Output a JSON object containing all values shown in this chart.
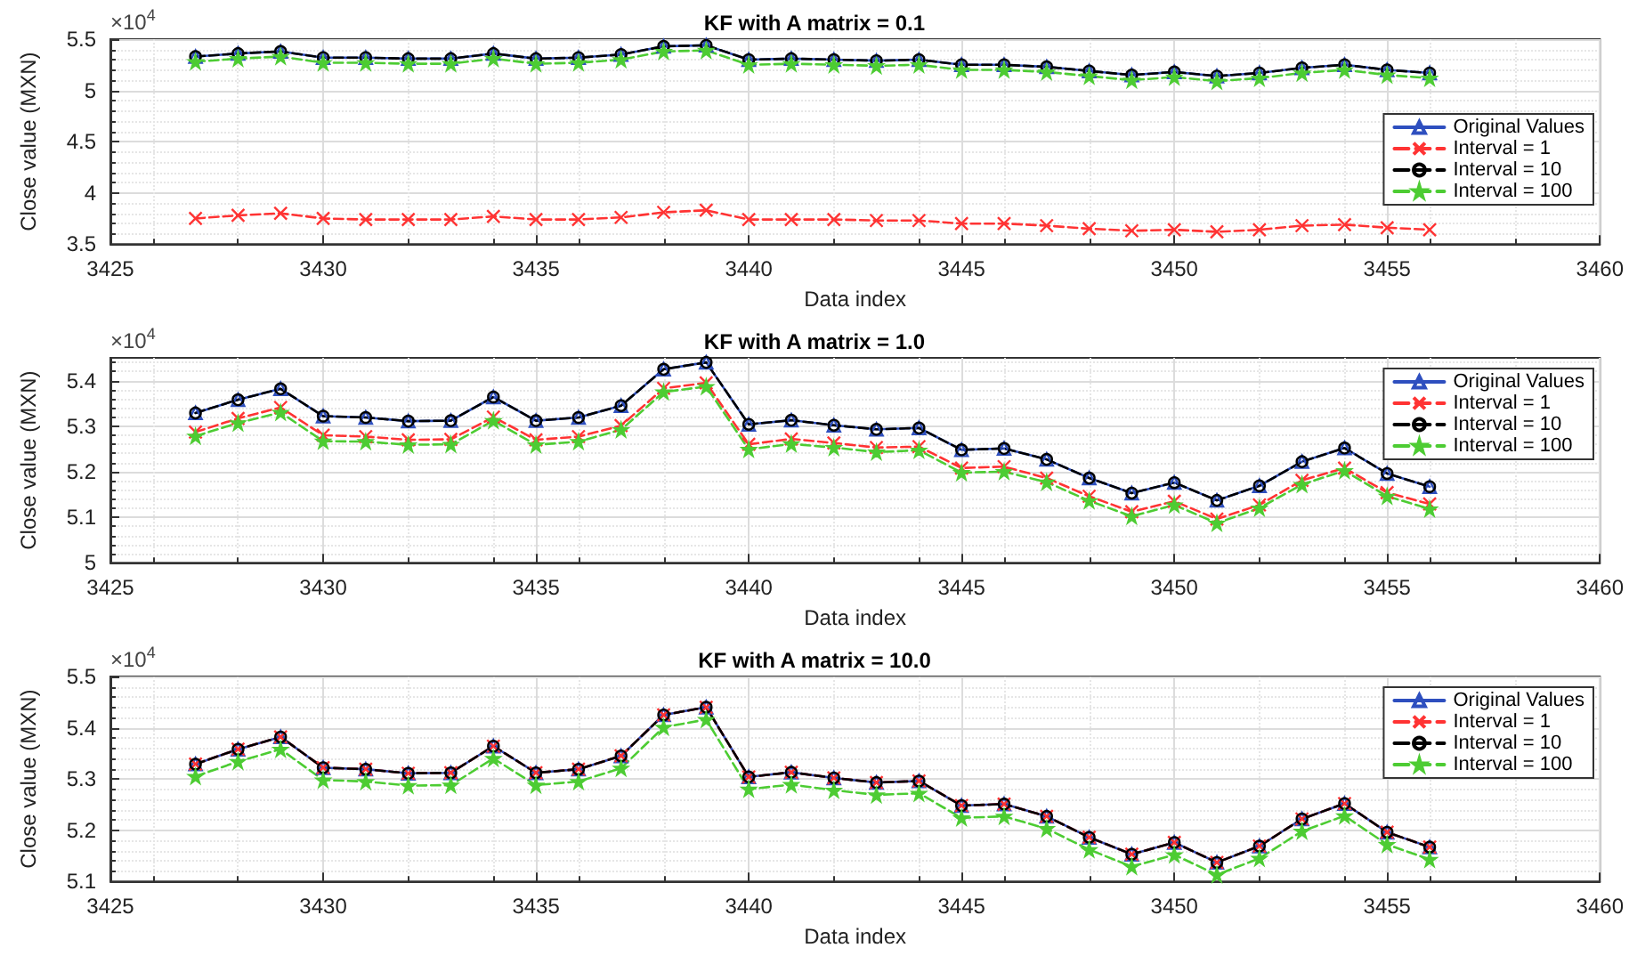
{
  "chart_data": [
    {
      "type": "line",
      "title": "KF with A matrix = 0.1",
      "xlabel": "Data index",
      "ylabel": "Close value (MXN)",
      "annotations": [
        "×10$^{4}$"
      ],
      "grid": true,
      "legend": "right",
      "x": [
        3427,
        3428,
        3429,
        3430,
        3431,
        3432,
        3433,
        3434,
        3435,
        3436,
        3437,
        3438,
        3439,
        3440,
        3441,
        3442,
        3443,
        3444,
        3445,
        3446,
        3447,
        3448,
        3449,
        3450,
        3451,
        3452,
        3453,
        3454,
        3455,
        3456
      ],
      "xlim": [
        3425,
        3460
      ],
      "xticks": [
        3425,
        3430,
        3435,
        3440,
        3445,
        3450,
        3455,
        3460
      ],
      "ylim": [
        3.5,
        5.5
      ],
      "yticks": [
        3.5,
        4,
        4.5,
        5,
        5.5
      ],
      "series": [
        {
          "name": "Original Values",
          "color": "#2e4fbf",
          "marker": "triangle",
          "line_style": "solid",
          "values": [
            5.33,
            5.36,
            5.38,
            5.32,
            5.32,
            5.31,
            5.31,
            5.36,
            5.31,
            5.32,
            5.35,
            5.43,
            5.44,
            5.3,
            5.31,
            5.3,
            5.29,
            5.3,
            5.25,
            5.25,
            5.23,
            5.19,
            5.15,
            5.18,
            5.14,
            5.17,
            5.22,
            5.25,
            5.2,
            5.17
          ]
        },
        {
          "name": "Interval = 1",
          "color": "#ff3333",
          "marker": "cross",
          "line_style": "dashed",
          "values": [
            3.75,
            3.78,
            3.8,
            3.75,
            3.74,
            3.74,
            3.74,
            3.77,
            3.74,
            3.74,
            3.76,
            3.81,
            3.83,
            3.74,
            3.74,
            3.74,
            3.73,
            3.73,
            3.7,
            3.7,
            3.68,
            3.65,
            3.63,
            3.64,
            3.62,
            3.64,
            3.68,
            3.69,
            3.66,
            3.64
          ]
        },
        {
          "name": "Interval = 10",
          "color": "#000000",
          "marker": "circle",
          "line_style": "dashed",
          "values": [
            5.33,
            5.36,
            5.38,
            5.32,
            5.32,
            5.31,
            5.31,
            5.36,
            5.31,
            5.32,
            5.35,
            5.43,
            5.44,
            5.3,
            5.31,
            5.3,
            5.29,
            5.3,
            5.25,
            5.25,
            5.23,
            5.19,
            5.15,
            5.18,
            5.14,
            5.17,
            5.22,
            5.25,
            5.2,
            5.17
          ]
        },
        {
          "name": "Interval = 100",
          "color": "#4dcc33",
          "marker": "star",
          "line_style": "dashed",
          "values": [
            5.28,
            5.31,
            5.33,
            5.27,
            5.27,
            5.26,
            5.26,
            5.31,
            5.26,
            5.27,
            5.3,
            5.38,
            5.39,
            5.25,
            5.26,
            5.25,
            5.24,
            5.25,
            5.2,
            5.2,
            5.18,
            5.14,
            5.1,
            5.13,
            5.09,
            5.12,
            5.17,
            5.2,
            5.15,
            5.12
          ]
        }
      ]
    },
    {
      "type": "line",
      "title": "KF with A matrix = 1.0",
      "xlabel": "Data index",
      "ylabel": "Close value (MXN)",
      "annotations": [
        "×10$^{4}$"
      ],
      "grid": true,
      "legend": "top right",
      "x": [
        3427,
        3428,
        3429,
        3430,
        3431,
        3432,
        3433,
        3434,
        3435,
        3436,
        3437,
        3438,
        3439,
        3440,
        3441,
        3442,
        3443,
        3444,
        3445,
        3446,
        3447,
        3448,
        3449,
        3450,
        3451,
        3452,
        3453,
        3454,
        3455,
        3456
      ],
      "xlim": [
        3425,
        3460
      ],
      "xticks": [
        3425,
        3430,
        3435,
        3440,
        3445,
        3450,
        3455,
        3460
      ],
      "ylim": [
        5,
        5.45
      ],
      "yticks": [
        5,
        5.1,
        5.2,
        5.3,
        5.4
      ],
      "series": [
        {
          "name": "Original Values",
          "color": "#2e4fbf",
          "marker": "triangle",
          "line_style": "solid",
          "values": [
            5.329,
            5.358,
            5.382,
            5.322,
            5.319,
            5.311,
            5.312,
            5.364,
            5.312,
            5.319,
            5.345,
            5.425,
            5.44,
            5.304,
            5.313,
            5.302,
            5.293,
            5.296,
            5.248,
            5.251,
            5.227,
            5.186,
            5.153,
            5.176,
            5.137,
            5.169,
            5.222,
            5.252,
            5.196,
            5.167
          ]
        },
        {
          "name": "Interval = 1",
          "color": "#ff3333",
          "marker": "cross",
          "line_style": "dashed",
          "values": [
            5.287,
            5.317,
            5.341,
            5.28,
            5.277,
            5.27,
            5.271,
            5.32,
            5.27,
            5.277,
            5.301,
            5.383,
            5.395,
            5.26,
            5.272,
            5.263,
            5.253,
            5.255,
            5.208,
            5.211,
            5.186,
            5.146,
            5.112,
            5.135,
            5.096,
            5.127,
            5.181,
            5.208,
            5.154,
            5.129
          ]
        },
        {
          "name": "Interval = 10",
          "color": "#000000",
          "marker": "circle",
          "line_style": "dashed",
          "values": [
            5.329,
            5.358,
            5.382,
            5.322,
            5.319,
            5.311,
            5.312,
            5.364,
            5.312,
            5.319,
            5.345,
            5.425,
            5.44,
            5.304,
            5.313,
            5.302,
            5.293,
            5.296,
            5.248,
            5.251,
            5.227,
            5.186,
            5.153,
            5.176,
            5.137,
            5.169,
            5.222,
            5.252,
            5.196,
            5.167
          ]
        },
        {
          "name": "Interval = 100",
          "color": "#4dcc33",
          "marker": "star",
          "line_style": "dashed",
          "values": [
            5.278,
            5.307,
            5.33,
            5.267,
            5.266,
            5.259,
            5.26,
            5.312,
            5.259,
            5.266,
            5.292,
            5.375,
            5.387,
            5.249,
            5.261,
            5.253,
            5.243,
            5.247,
            5.198,
            5.2,
            5.177,
            5.136,
            5.102,
            5.127,
            5.087,
            5.12,
            5.172,
            5.202,
            5.146,
            5.118
          ]
        }
      ]
    },
    {
      "type": "line",
      "title": "KF with A matrix = 10.0",
      "xlabel": "Data index",
      "ylabel": "Close value (MXN)",
      "annotations": [
        "×10$^{4}$"
      ],
      "grid": true,
      "legend": "top right",
      "x": [
        3427,
        3428,
        3429,
        3430,
        3431,
        3432,
        3433,
        3434,
        3435,
        3436,
        3437,
        3438,
        3439,
        3440,
        3441,
        3442,
        3443,
        3444,
        3445,
        3446,
        3447,
        3448,
        3449,
        3450,
        3451,
        3452,
        3453,
        3454,
        3455,
        3456
      ],
      "xlim": [
        3425,
        3460
      ],
      "xticks": [
        3425,
        3430,
        3435,
        3440,
        3445,
        3450,
        3455,
        3460
      ],
      "ylim": [
        5.1,
        5.5
      ],
      "yticks": [
        5.1,
        5.2,
        5.3,
        5.4,
        5.5
      ],
      "series": [
        {
          "name": "Original Values",
          "color": "#2e4fbf",
          "marker": "triangle",
          "line_style": "solid",
          "values": [
            5.329,
            5.358,
            5.382,
            5.322,
            5.319,
            5.311,
            5.312,
            5.364,
            5.312,
            5.319,
            5.345,
            5.425,
            5.44,
            5.304,
            5.313,
            5.302,
            5.293,
            5.296,
            5.248,
            5.251,
            5.227,
            5.186,
            5.153,
            5.176,
            5.137,
            5.169,
            5.222,
            5.252,
            5.196,
            5.167
          ]
        },
        {
          "name": "Interval = 1",
          "color": "#ff3333",
          "marker": "cross",
          "line_style": "dashed",
          "values": [
            5.329,
            5.358,
            5.382,
            5.322,
            5.319,
            5.311,
            5.312,
            5.364,
            5.312,
            5.319,
            5.345,
            5.425,
            5.44,
            5.304,
            5.313,
            5.302,
            5.293,
            5.296,
            5.248,
            5.251,
            5.227,
            5.186,
            5.153,
            5.176,
            5.137,
            5.169,
            5.222,
            5.252,
            5.196,
            5.167
          ]
        },
        {
          "name": "Interval = 10",
          "color": "#000000",
          "marker": "circle",
          "line_style": "dashed",
          "values": [
            5.329,
            5.358,
            5.382,
            5.322,
            5.319,
            5.311,
            5.312,
            5.364,
            5.312,
            5.319,
            5.345,
            5.425,
            5.44,
            5.304,
            5.313,
            5.302,
            5.293,
            5.296,
            5.248,
            5.251,
            5.227,
            5.186,
            5.153,
            5.176,
            5.137,
            5.169,
            5.222,
            5.252,
            5.196,
            5.167
          ]
        },
        {
          "name": "Interval = 100",
          "color": "#4dcc33",
          "marker": "star",
          "line_style": "dashed",
          "values": [
            5.305,
            5.334,
            5.358,
            5.298,
            5.295,
            5.287,
            5.288,
            5.34,
            5.288,
            5.295,
            5.321,
            5.401,
            5.416,
            5.28,
            5.289,
            5.278,
            5.269,
            5.272,
            5.224,
            5.227,
            5.203,
            5.162,
            5.129,
            5.152,
            5.113,
            5.145,
            5.198,
            5.228,
            5.172,
            5.143
          ]
        }
      ]
    }
  ]
}
